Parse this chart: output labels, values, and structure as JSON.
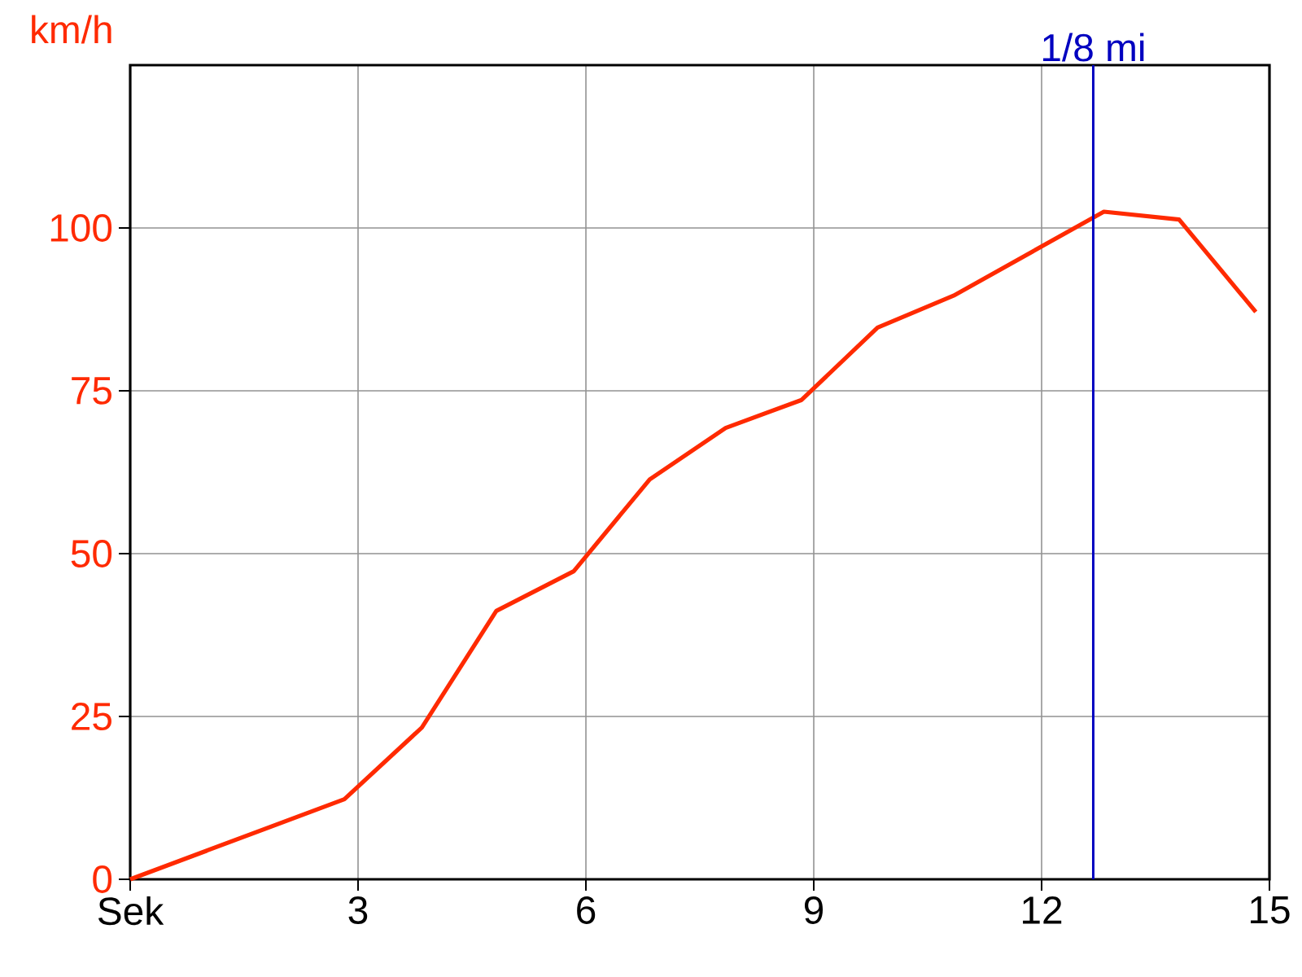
{
  "chart_data": {
    "type": "line",
    "ylabel": "km/h",
    "x": [
      0,
      2.82,
      3.84,
      4.82,
      5.84,
      6.84,
      7.84,
      8.84,
      9.84,
      10.84,
      12.82,
      13.81,
      14.82
    ],
    "series": [
      {
        "color": "#ff2a00",
        "values": [
          0,
          12.3,
          23.3,
          41.2,
          47.3,
          61.4,
          69.3,
          73.6,
          84.7,
          89.6,
          102.5,
          101.3,
          87.1
        ]
      }
    ],
    "xlim": [
      0,
      15
    ],
    "ylim": [
      0,
      125
    ],
    "xticks": [
      {
        "value": 0,
        "label": "Sek"
      },
      3,
      6,
      9,
      12,
      15
    ],
    "yticks": [
      0,
      25,
      50,
      75,
      100
    ],
    "ref_lines": [
      {
        "axis": "x",
        "value": 12.68,
        "label": "1/8 mi",
        "color": "#0000c0"
      }
    ],
    "grid": true,
    "marker": "none",
    "line_style": "solid"
  }
}
